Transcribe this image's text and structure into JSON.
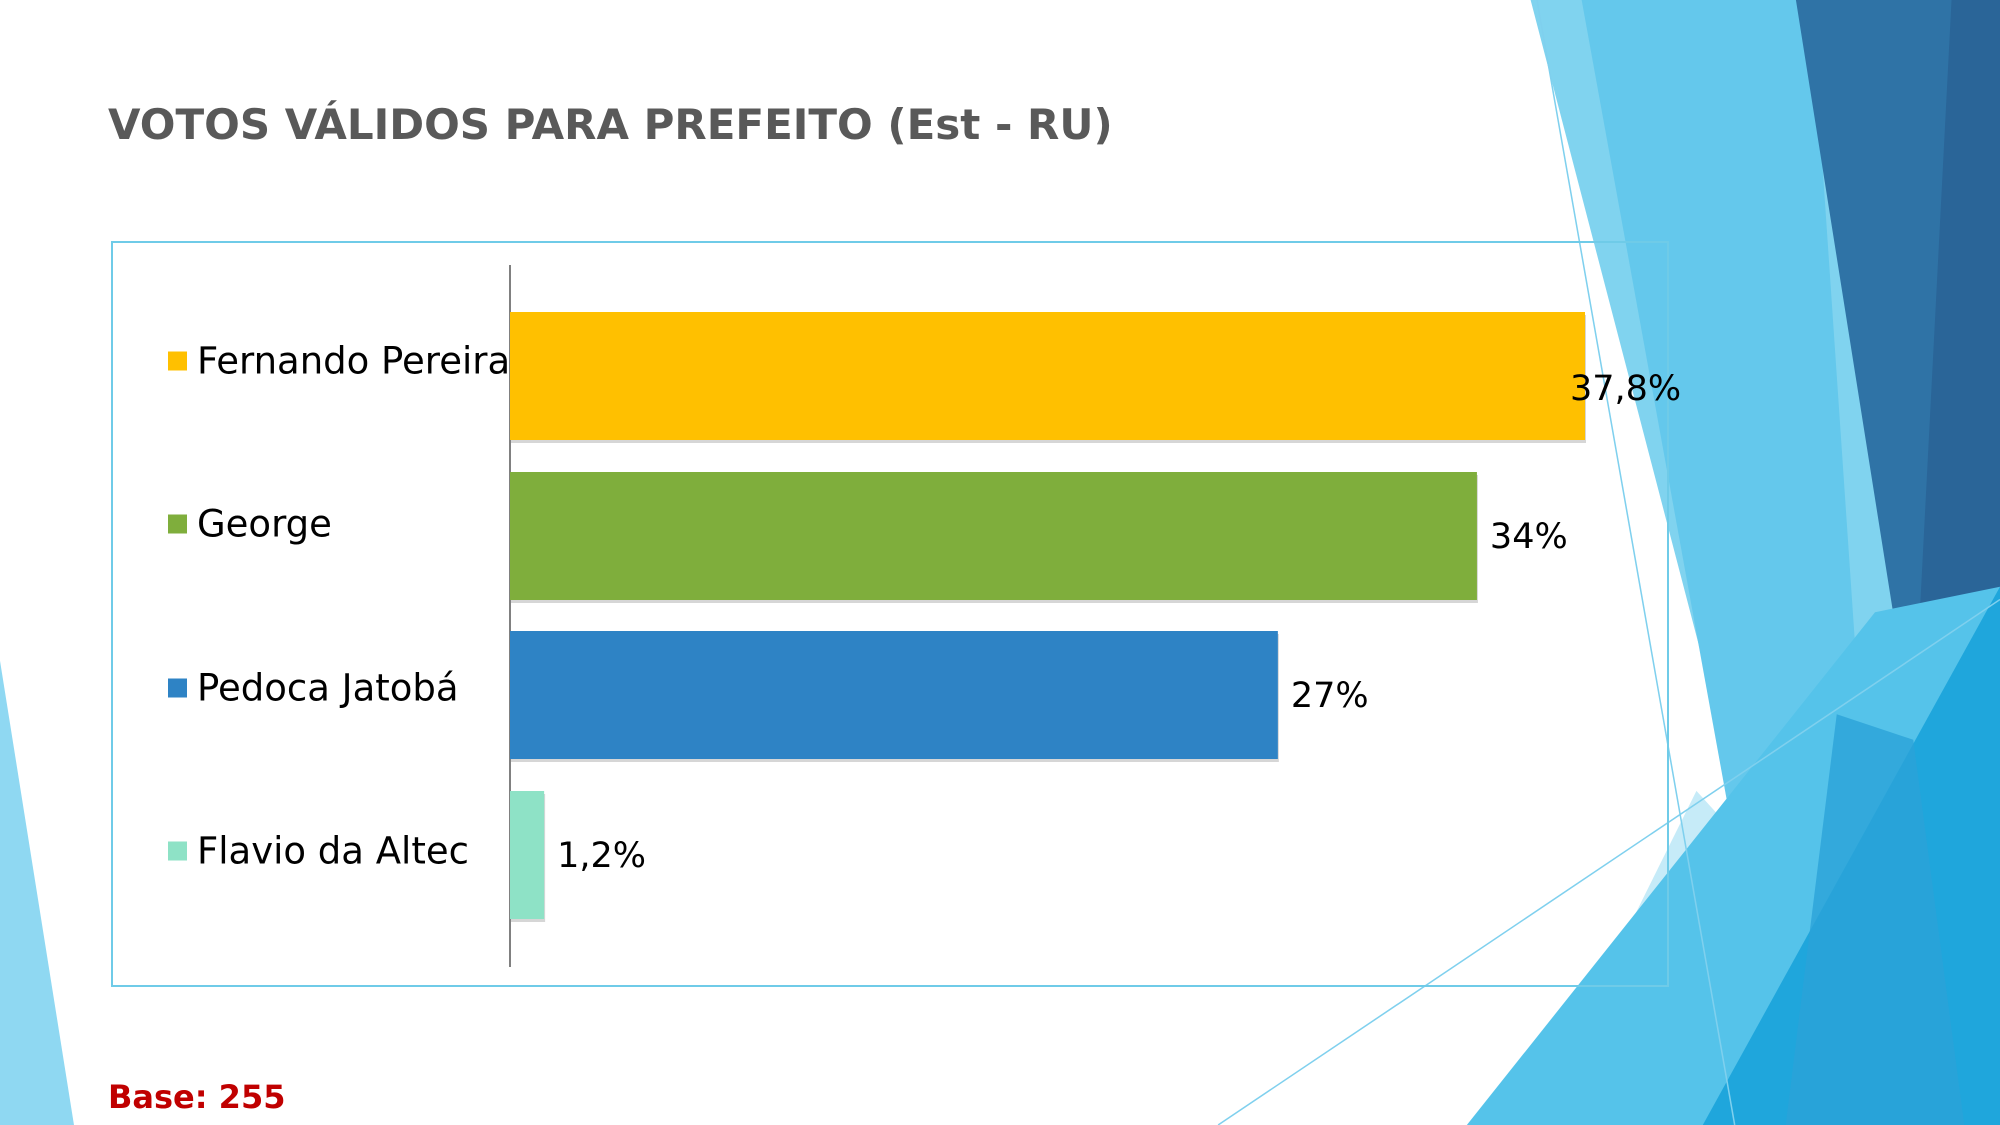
{
  "title": "VOTOS VÁLIDOS PARA PREFEITO (Est - RU)",
  "base_note": "Base: 255",
  "chart_data": {
    "type": "bar",
    "orientation": "horizontal",
    "title": "VOTOS VÁLIDOS PARA PREFEITO (Est - RU)",
    "categories": [
      "Fernando Pereira",
      "George",
      "Pedoca Jatobá",
      "Flavio da Altec"
    ],
    "values": [
      37.8,
      34,
      27,
      1.2
    ],
    "data_labels": [
      "37,8%",
      "34%",
      "27%",
      "1,2%"
    ],
    "colors": [
      "#ffc000",
      "#7fae3c",
      "#2e83c5",
      "#8ee2c6"
    ],
    "xlabel": "",
    "ylabel": "",
    "xlim": [
      0,
      37.8
    ],
    "grid": false,
    "legend": "left"
  }
}
